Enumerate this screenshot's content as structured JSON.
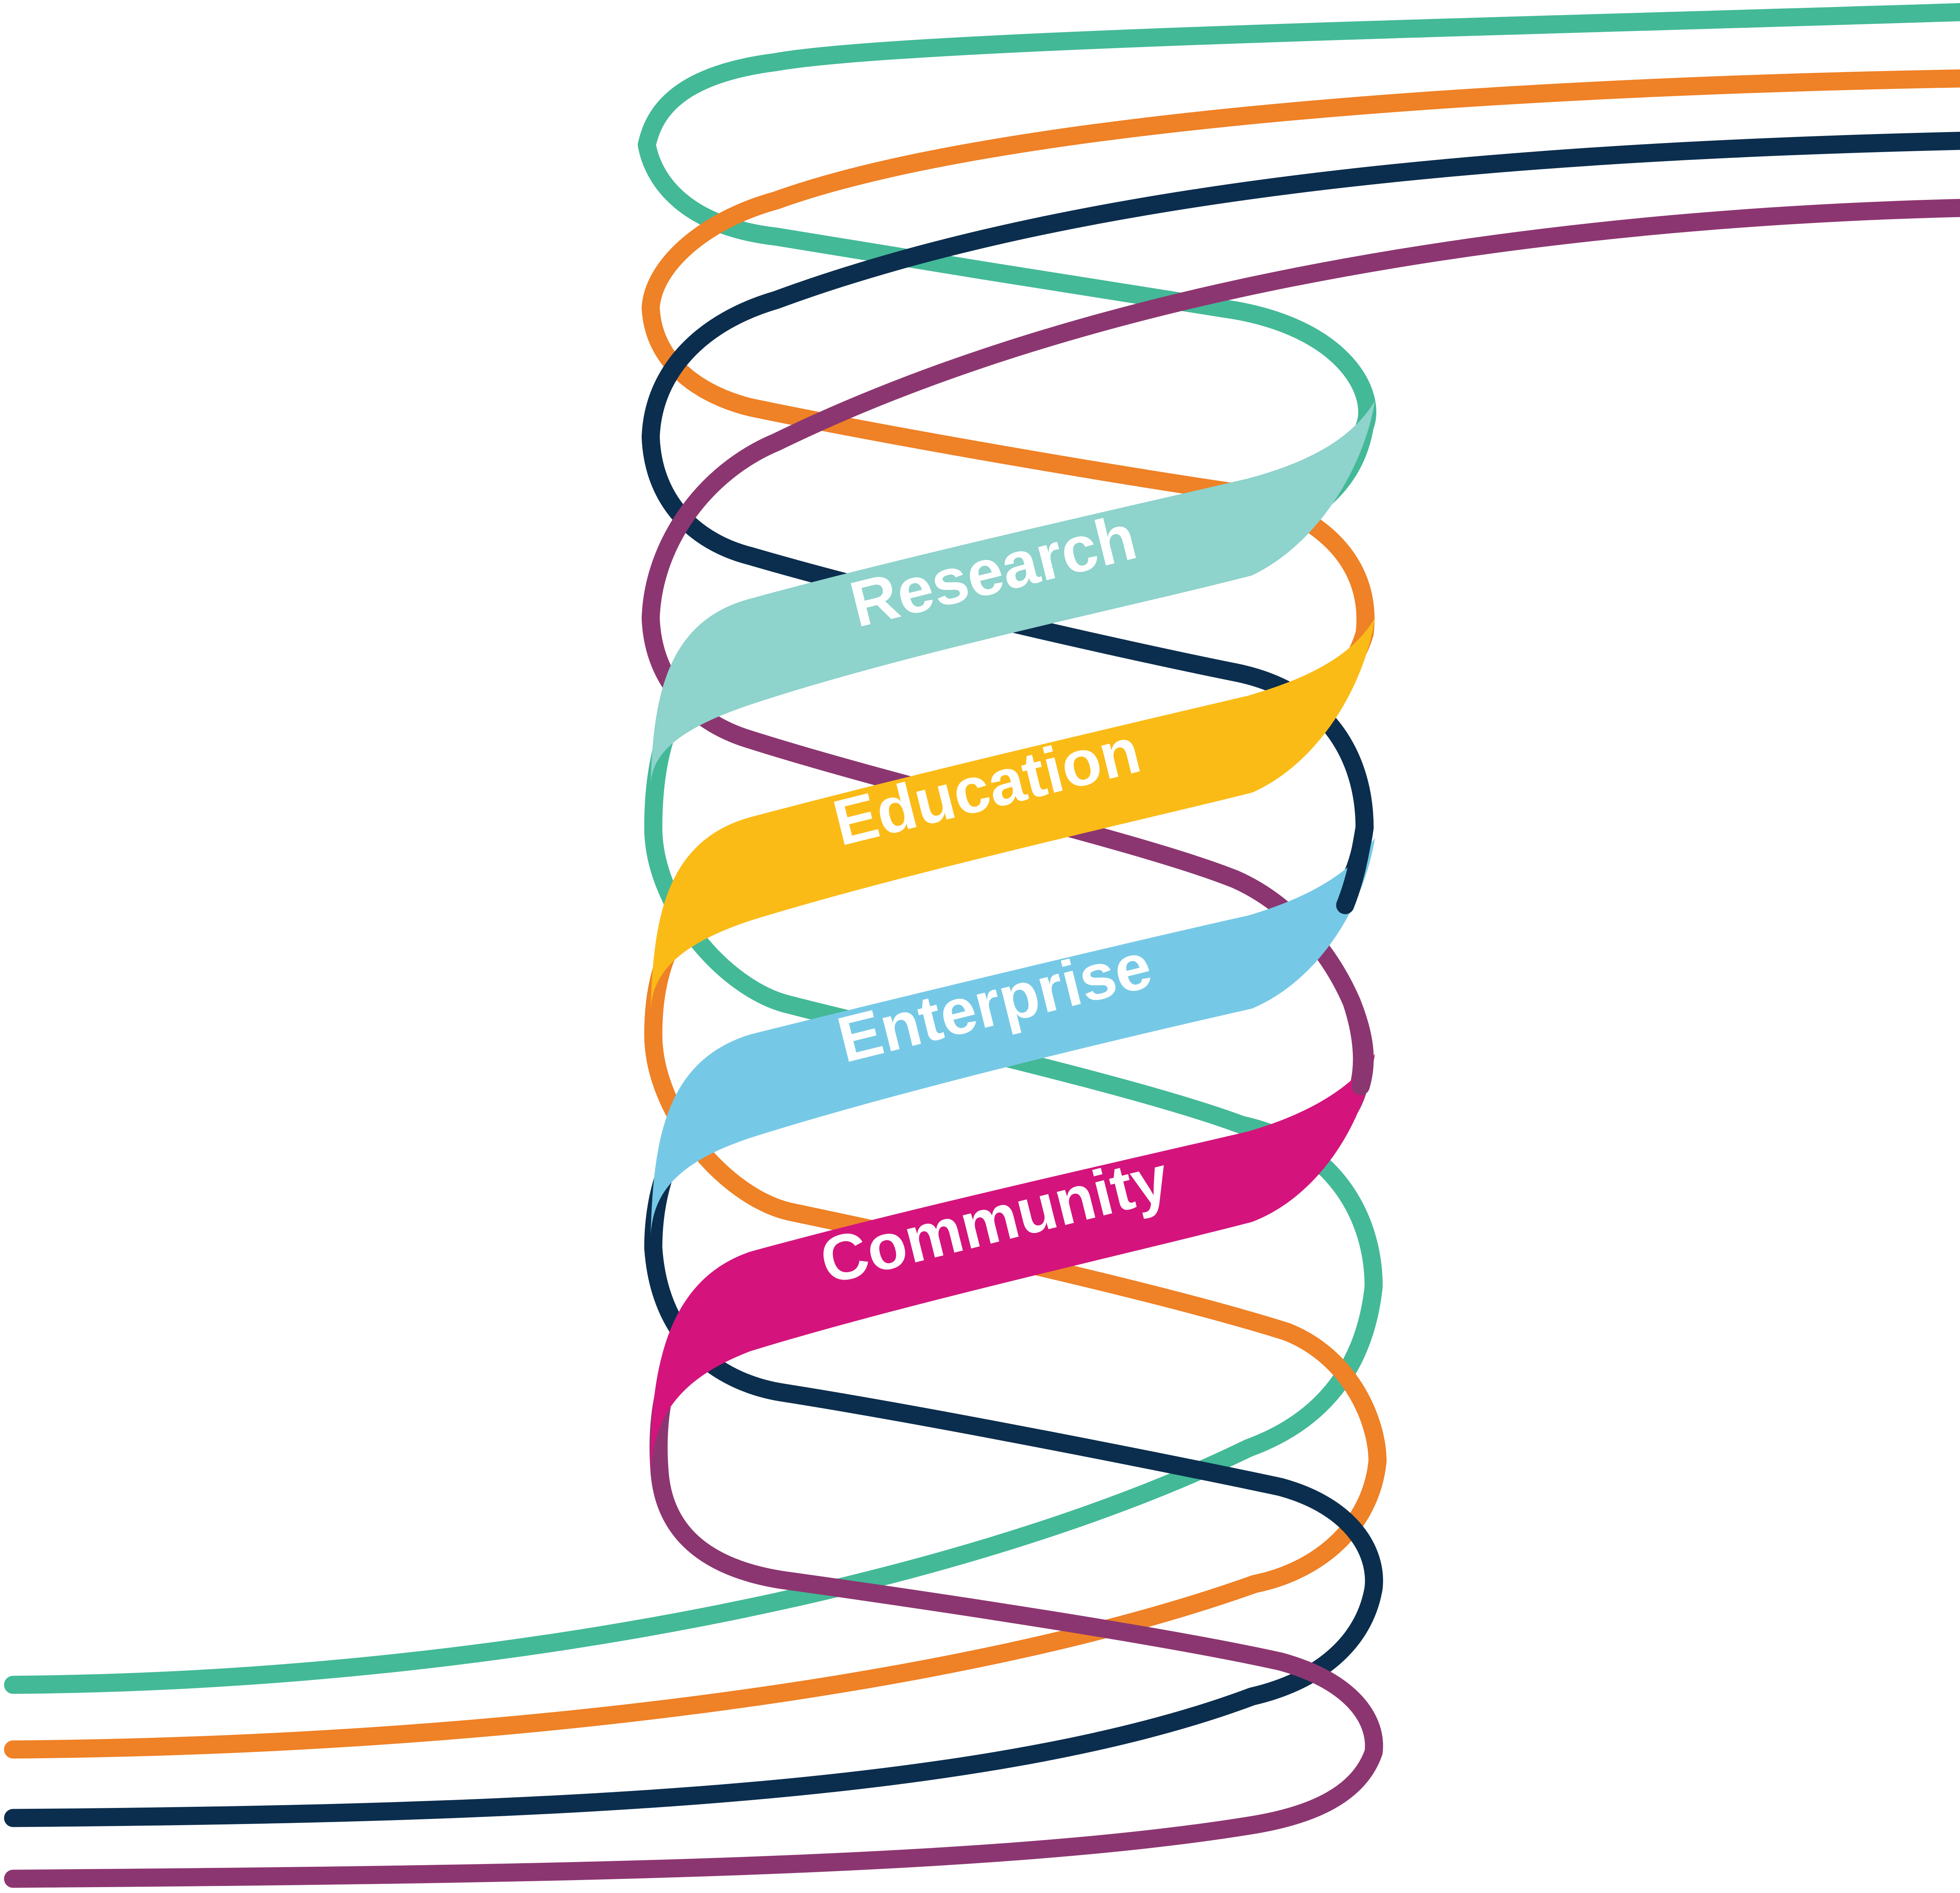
{
  "diagram": {
    "strand_colors": {
      "green": "#43b997",
      "orange": "#ef8126",
      "navy": "#0c2e4e",
      "purple": "#8c3671"
    },
    "ribbons": [
      {
        "id": "research",
        "label": "Research",
        "color": "#8ed3cc"
      },
      {
        "id": "education",
        "label": "Education",
        "color": "#fbbb17"
      },
      {
        "id": "enterprise",
        "label": "Enterprise",
        "color": "#76c9e6"
      },
      {
        "id": "community",
        "label": "Community",
        "color": "#d4147c"
      }
    ]
  }
}
